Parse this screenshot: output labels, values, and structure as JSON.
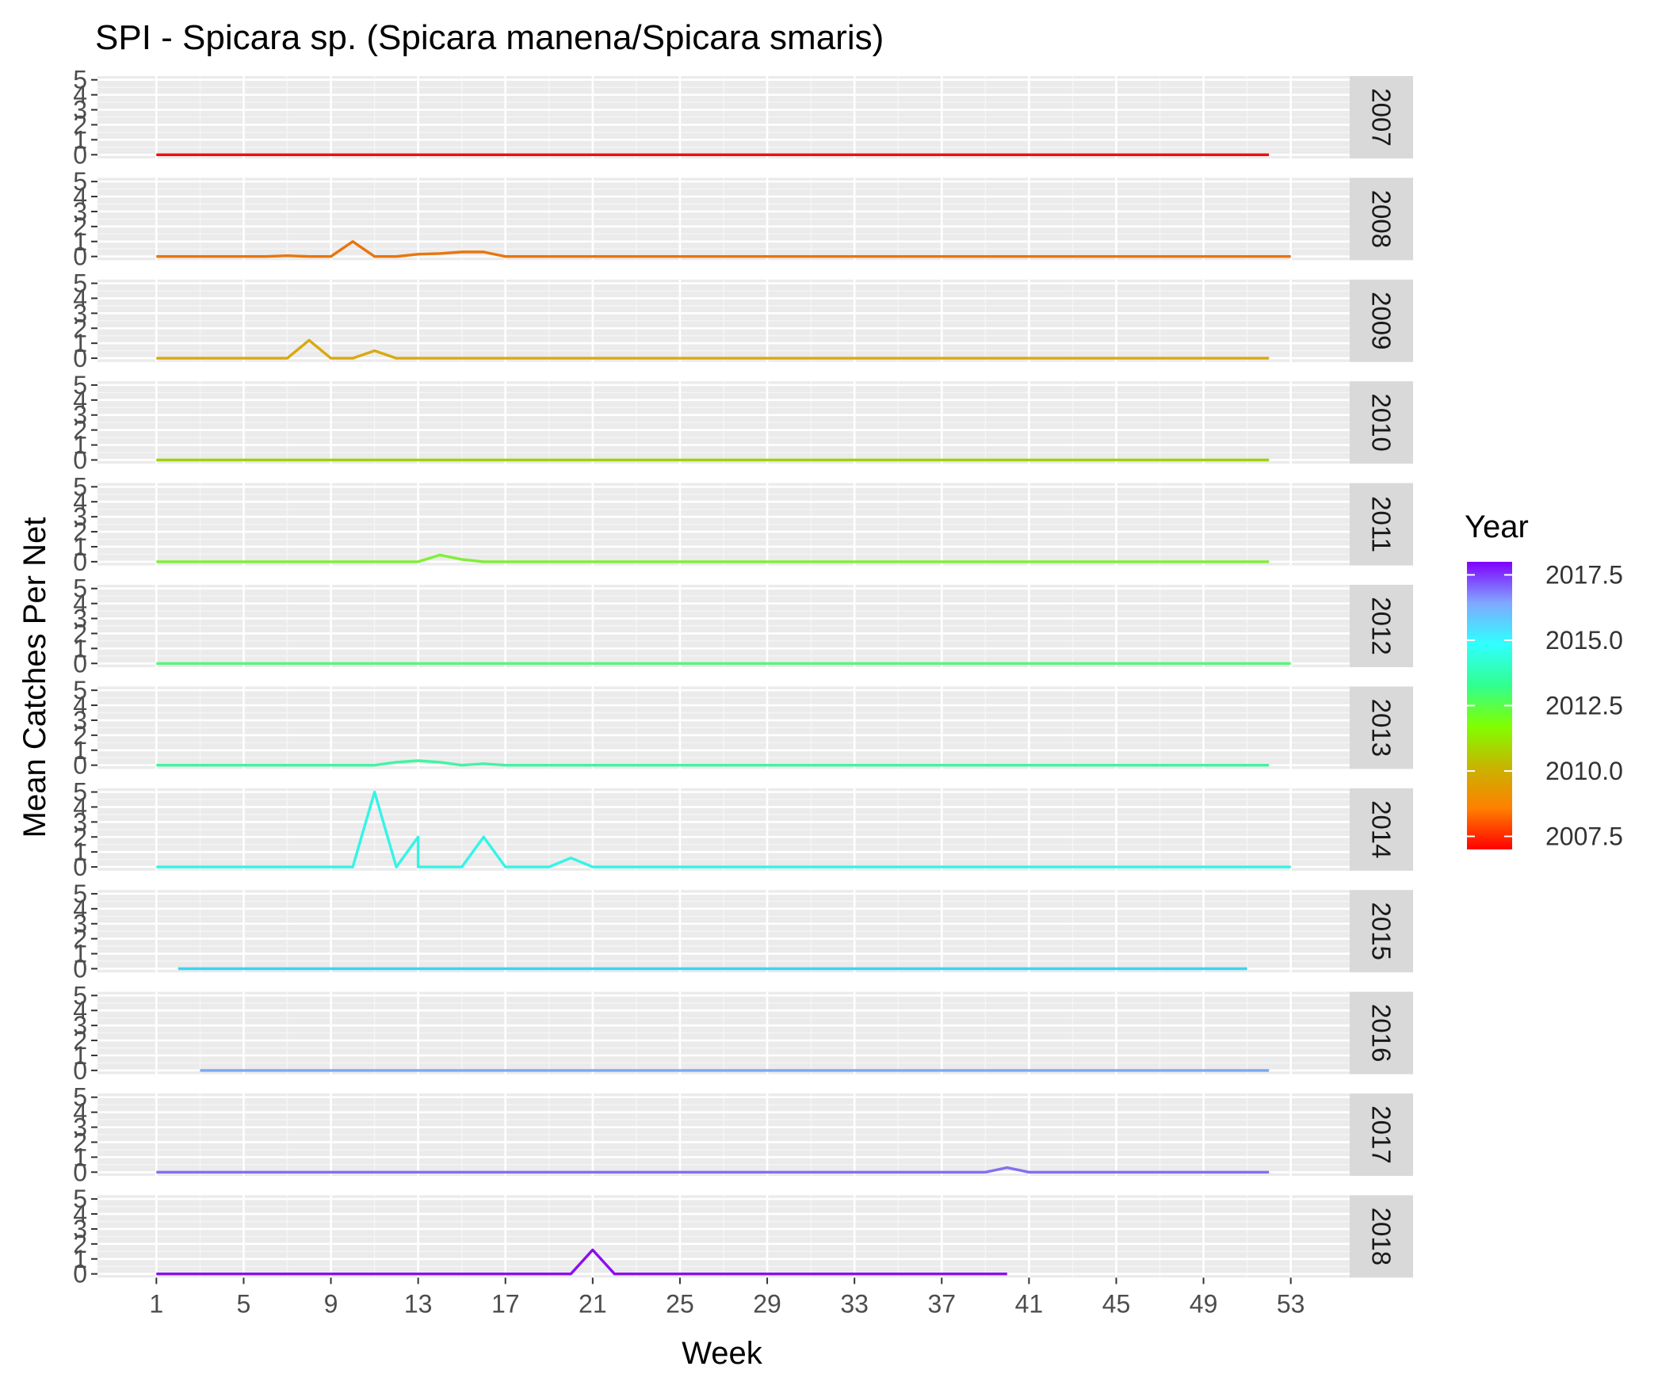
{
  "chart_data": {
    "type": "line",
    "title": "SPI - Spicara sp. (Spicara manena/Spicara smaris)",
    "xlabel": "Week",
    "ylabel": "Mean Catches Per Net",
    "x_ticks": [
      1,
      5,
      9,
      13,
      17,
      21,
      25,
      29,
      33,
      37,
      41,
      45,
      49,
      53
    ],
    "xlim": [
      -1.7,
      55.7
    ],
    "y_ticks": [
      0,
      1,
      2,
      3,
      4,
      5
    ],
    "ylim": [
      -0.25,
      5.25
    ],
    "grid": true,
    "facet_strip_position": "right",
    "legend": {
      "title": "Year",
      "position": "right",
      "type": "colorbar",
      "range": [
        2007,
        2018
      ],
      "ticks": [
        "2017.5",
        "2015.0",
        "2012.5",
        "2010.0",
        "2007.5"
      ],
      "tick_values": [
        2017.5,
        2015.0,
        2012.5,
        2010.0,
        2007.5
      ],
      "gradient_colors": [
        "#ff0000",
        "#ff8000",
        "#c8b400",
        "#80ff00",
        "#30ff90",
        "#30ffff",
        "#80a8ff",
        "#8000ff"
      ]
    },
    "series": [
      {
        "name": "2007",
        "color": "#f20d0d",
        "points": [
          [
            1,
            0
          ],
          [
            52,
            0
          ]
        ]
      },
      {
        "name": "2008",
        "color": "#e8760e",
        "points": [
          [
            1,
            0
          ],
          [
            6,
            0
          ],
          [
            7,
            0.05
          ],
          [
            8,
            0
          ],
          [
            9,
            0
          ],
          [
            10,
            1.0
          ],
          [
            11,
            0
          ],
          [
            12,
            0
          ],
          [
            13,
            0.15
          ],
          [
            14,
            0.2
          ],
          [
            15,
            0.3
          ],
          [
            16,
            0.3
          ],
          [
            17,
            0
          ],
          [
            53,
            0
          ]
        ]
      },
      {
        "name": "2009",
        "color": "#d9a90f",
        "points": [
          [
            1,
            0
          ],
          [
            7,
            0
          ],
          [
            8,
            1.2
          ],
          [
            9,
            0
          ],
          [
            10,
            0
          ],
          [
            11,
            0.5
          ],
          [
            12,
            0
          ],
          [
            52,
            0
          ]
        ]
      },
      {
        "name": "2010",
        "color": "#9ed30e",
        "points": [
          [
            1,
            0
          ],
          [
            52,
            0
          ]
        ]
      },
      {
        "name": "2011",
        "color": "#7ff035",
        "points": [
          [
            1,
            0
          ],
          [
            13,
            0
          ],
          [
            14,
            0.45
          ],
          [
            15,
            0.15
          ],
          [
            16,
            0
          ],
          [
            52,
            0
          ]
        ]
      },
      {
        "name": "2012",
        "color": "#5af57a",
        "points": [
          [
            1,
            0
          ],
          [
            53,
            0
          ]
        ]
      },
      {
        "name": "2013",
        "color": "#43f4a0",
        "points": [
          [
            1,
            0
          ],
          [
            11,
            0
          ],
          [
            12,
            0.2
          ],
          [
            13,
            0.3
          ],
          [
            14,
            0.2
          ],
          [
            15,
            0
          ],
          [
            16,
            0.1
          ],
          [
            17,
            0
          ],
          [
            52,
            0
          ]
        ]
      },
      {
        "name": "2014",
        "color": "#35f4e6",
        "points": [
          [
            1,
            0
          ],
          [
            10,
            0
          ],
          [
            11,
            5.0
          ],
          [
            12,
            0
          ],
          [
            13,
            2.0
          ],
          [
            13,
            0
          ],
          [
            15,
            0
          ],
          [
            16,
            2.0
          ],
          [
            17,
            0
          ],
          [
            19,
            0
          ],
          [
            20,
            0.6
          ],
          [
            21,
            0
          ],
          [
            53,
            0
          ]
        ]
      },
      {
        "name": "2015",
        "color": "#3ad3f5",
        "points": [
          [
            2,
            0
          ],
          [
            51,
            0
          ]
        ]
      },
      {
        "name": "2016",
        "color": "#7ea7f5",
        "points": [
          [
            3,
            0
          ],
          [
            52,
            0
          ]
        ]
      },
      {
        "name": "2017",
        "color": "#8170f2",
        "points": [
          [
            1,
            0
          ],
          [
            39,
            0
          ],
          [
            40,
            0.3
          ],
          [
            41,
            0
          ],
          [
            52,
            0
          ]
        ]
      },
      {
        "name": "2018",
        "color": "#8a0ff0",
        "points": [
          [
            1,
            0
          ],
          [
            20,
            0
          ],
          [
            21,
            1.6
          ],
          [
            22,
            0
          ],
          [
            40,
            0
          ]
        ]
      }
    ]
  }
}
